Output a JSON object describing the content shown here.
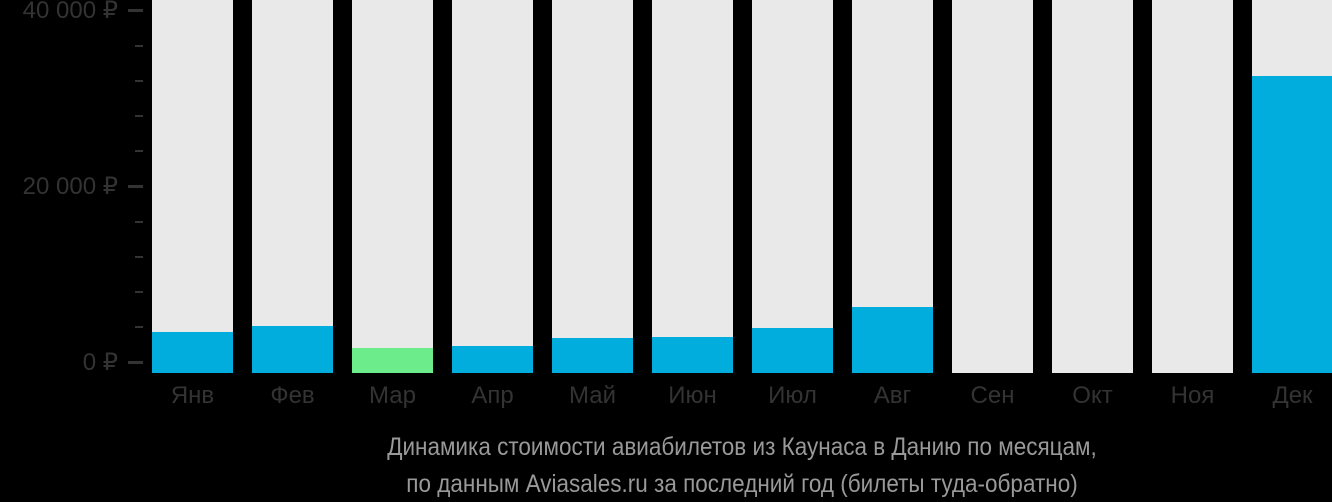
{
  "colors": {
    "background": "#000000",
    "column_bg": "#e9e9e9",
    "bar": "#00addc",
    "bar_highlight": "#6cec8b",
    "axis_text": "#333333",
    "caption_text": "#999999"
  },
  "y_axis": {
    "labels": [
      {
        "text": "40 000 ₽",
        "value": 40000
      },
      {
        "text": "20 000 ₽",
        "value": 20000
      },
      {
        "text": "0 ₽",
        "value": 0
      }
    ],
    "minor_tick_values": [
      4000,
      8000,
      12000,
      16000,
      24000,
      28000,
      32000,
      36000
    ]
  },
  "caption": {
    "line1": "Динамика стоимости авиабилетов из Каунаса в Данию по месяцам,",
    "line2": "по данным Aviasales.ru за последний год (билеты туда-обратно)"
  },
  "chart_data": {
    "type": "bar",
    "title": "Динамика стоимости авиабилетов из Каунаса в Данию по месяцам, по данным Aviasales.ru за последний год (билеты туда-обратно)",
    "categories": [
      "Янв",
      "Фев",
      "Мар",
      "Апр",
      "Май",
      "Июн",
      "Июл",
      "Авг",
      "Сен",
      "Окт",
      "Ноя",
      "Дек"
    ],
    "values": [
      3500,
      4100,
      1600,
      1900,
      2800,
      2900,
      3900,
      6300,
      null,
      null,
      null,
      32600
    ],
    "units": "₽",
    "xlabel": "",
    "ylabel": "",
    "ylim": [
      0,
      40000
    ],
    "y_major_tick_step": 20000,
    "y_minor_tick_step": 4000,
    "highlighted_category": "Мар",
    "no_data_categories": [
      "Сен",
      "Окт",
      "Ноя"
    ],
    "grid": false,
    "legend": false,
    "background_columns_full_height": true
  }
}
